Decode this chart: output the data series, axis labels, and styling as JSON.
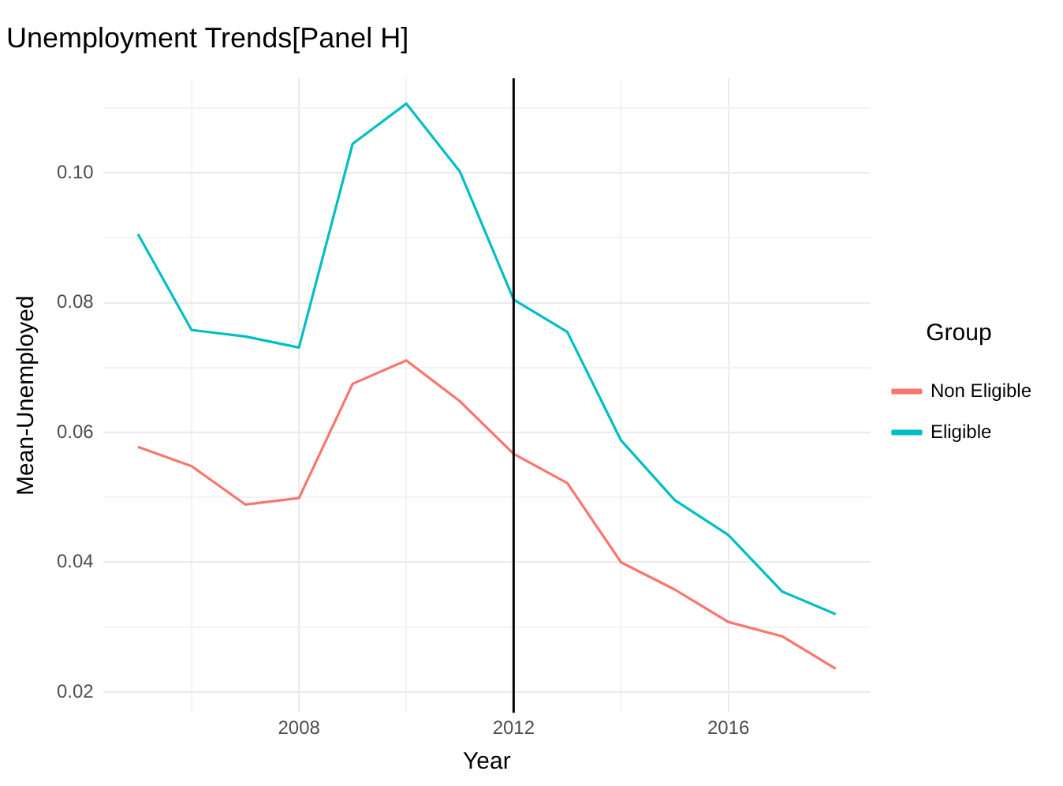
{
  "chart_data": {
    "type": "line",
    "title": "Unemployment Trends[Panel H]",
    "xlabel": "Year",
    "ylabel": "Mean-Unemployed",
    "legend_title": "Group",
    "legend": "right",
    "grid": true,
    "line_style": "solid",
    "marker": "none",
    "x": [
      2005,
      2006,
      2007,
      2008,
      2009,
      2010,
      2011,
      2012,
      2013,
      2014,
      2015,
      2016,
      2017,
      2018
    ],
    "xlim": [
      2004.35,
      2018.65
    ],
    "xticks": [
      {
        "value": 2006,
        "label": null
      },
      2008,
      {
        "value": 2010,
        "label": null
      },
      2012,
      {
        "value": 2014,
        "label": null
      },
      2016
    ],
    "ylim": [
      0.0168,
      0.1146
    ],
    "yticks": [
      {
        "value": 0.02,
        "label": "0.02"
      },
      {
        "value": 0.03,
        "label": null
      },
      {
        "value": 0.04,
        "label": "0.04"
      },
      {
        "value": 0.05,
        "label": null
      },
      {
        "value": 0.06,
        "label": "0.06"
      },
      {
        "value": 0.07,
        "label": null
      },
      {
        "value": 0.08,
        "label": "0.08"
      },
      {
        "value": 0.09,
        "label": null
      },
      {
        "value": 0.1,
        "label": "0.10"
      },
      {
        "value": 0.11,
        "label": null
      }
    ],
    "series": [
      {
        "name": "Non Eligible",
        "color": "#f8766d",
        "values": [
          0.0578,
          0.0548,
          0.0489,
          0.0499,
          0.0675,
          0.0711,
          0.0648,
          0.0567,
          0.0522,
          0.04,
          0.0358,
          0.0308,
          0.0286,
          0.0236
        ]
      },
      {
        "name": "Eligible",
        "color": "#00bfc4",
        "values": [
          0.0906,
          0.0758,
          0.0748,
          0.0731,
          0.1045,
          0.1107,
          0.1002,
          0.0805,
          0.0755,
          0.0588,
          0.0496,
          0.0442,
          0.0355,
          0.032
        ]
      }
    ],
    "ref_lines": [
      {
        "axis": "x",
        "value": 2012,
        "color": "#000000",
        "line_style": "solid"
      }
    ]
  }
}
